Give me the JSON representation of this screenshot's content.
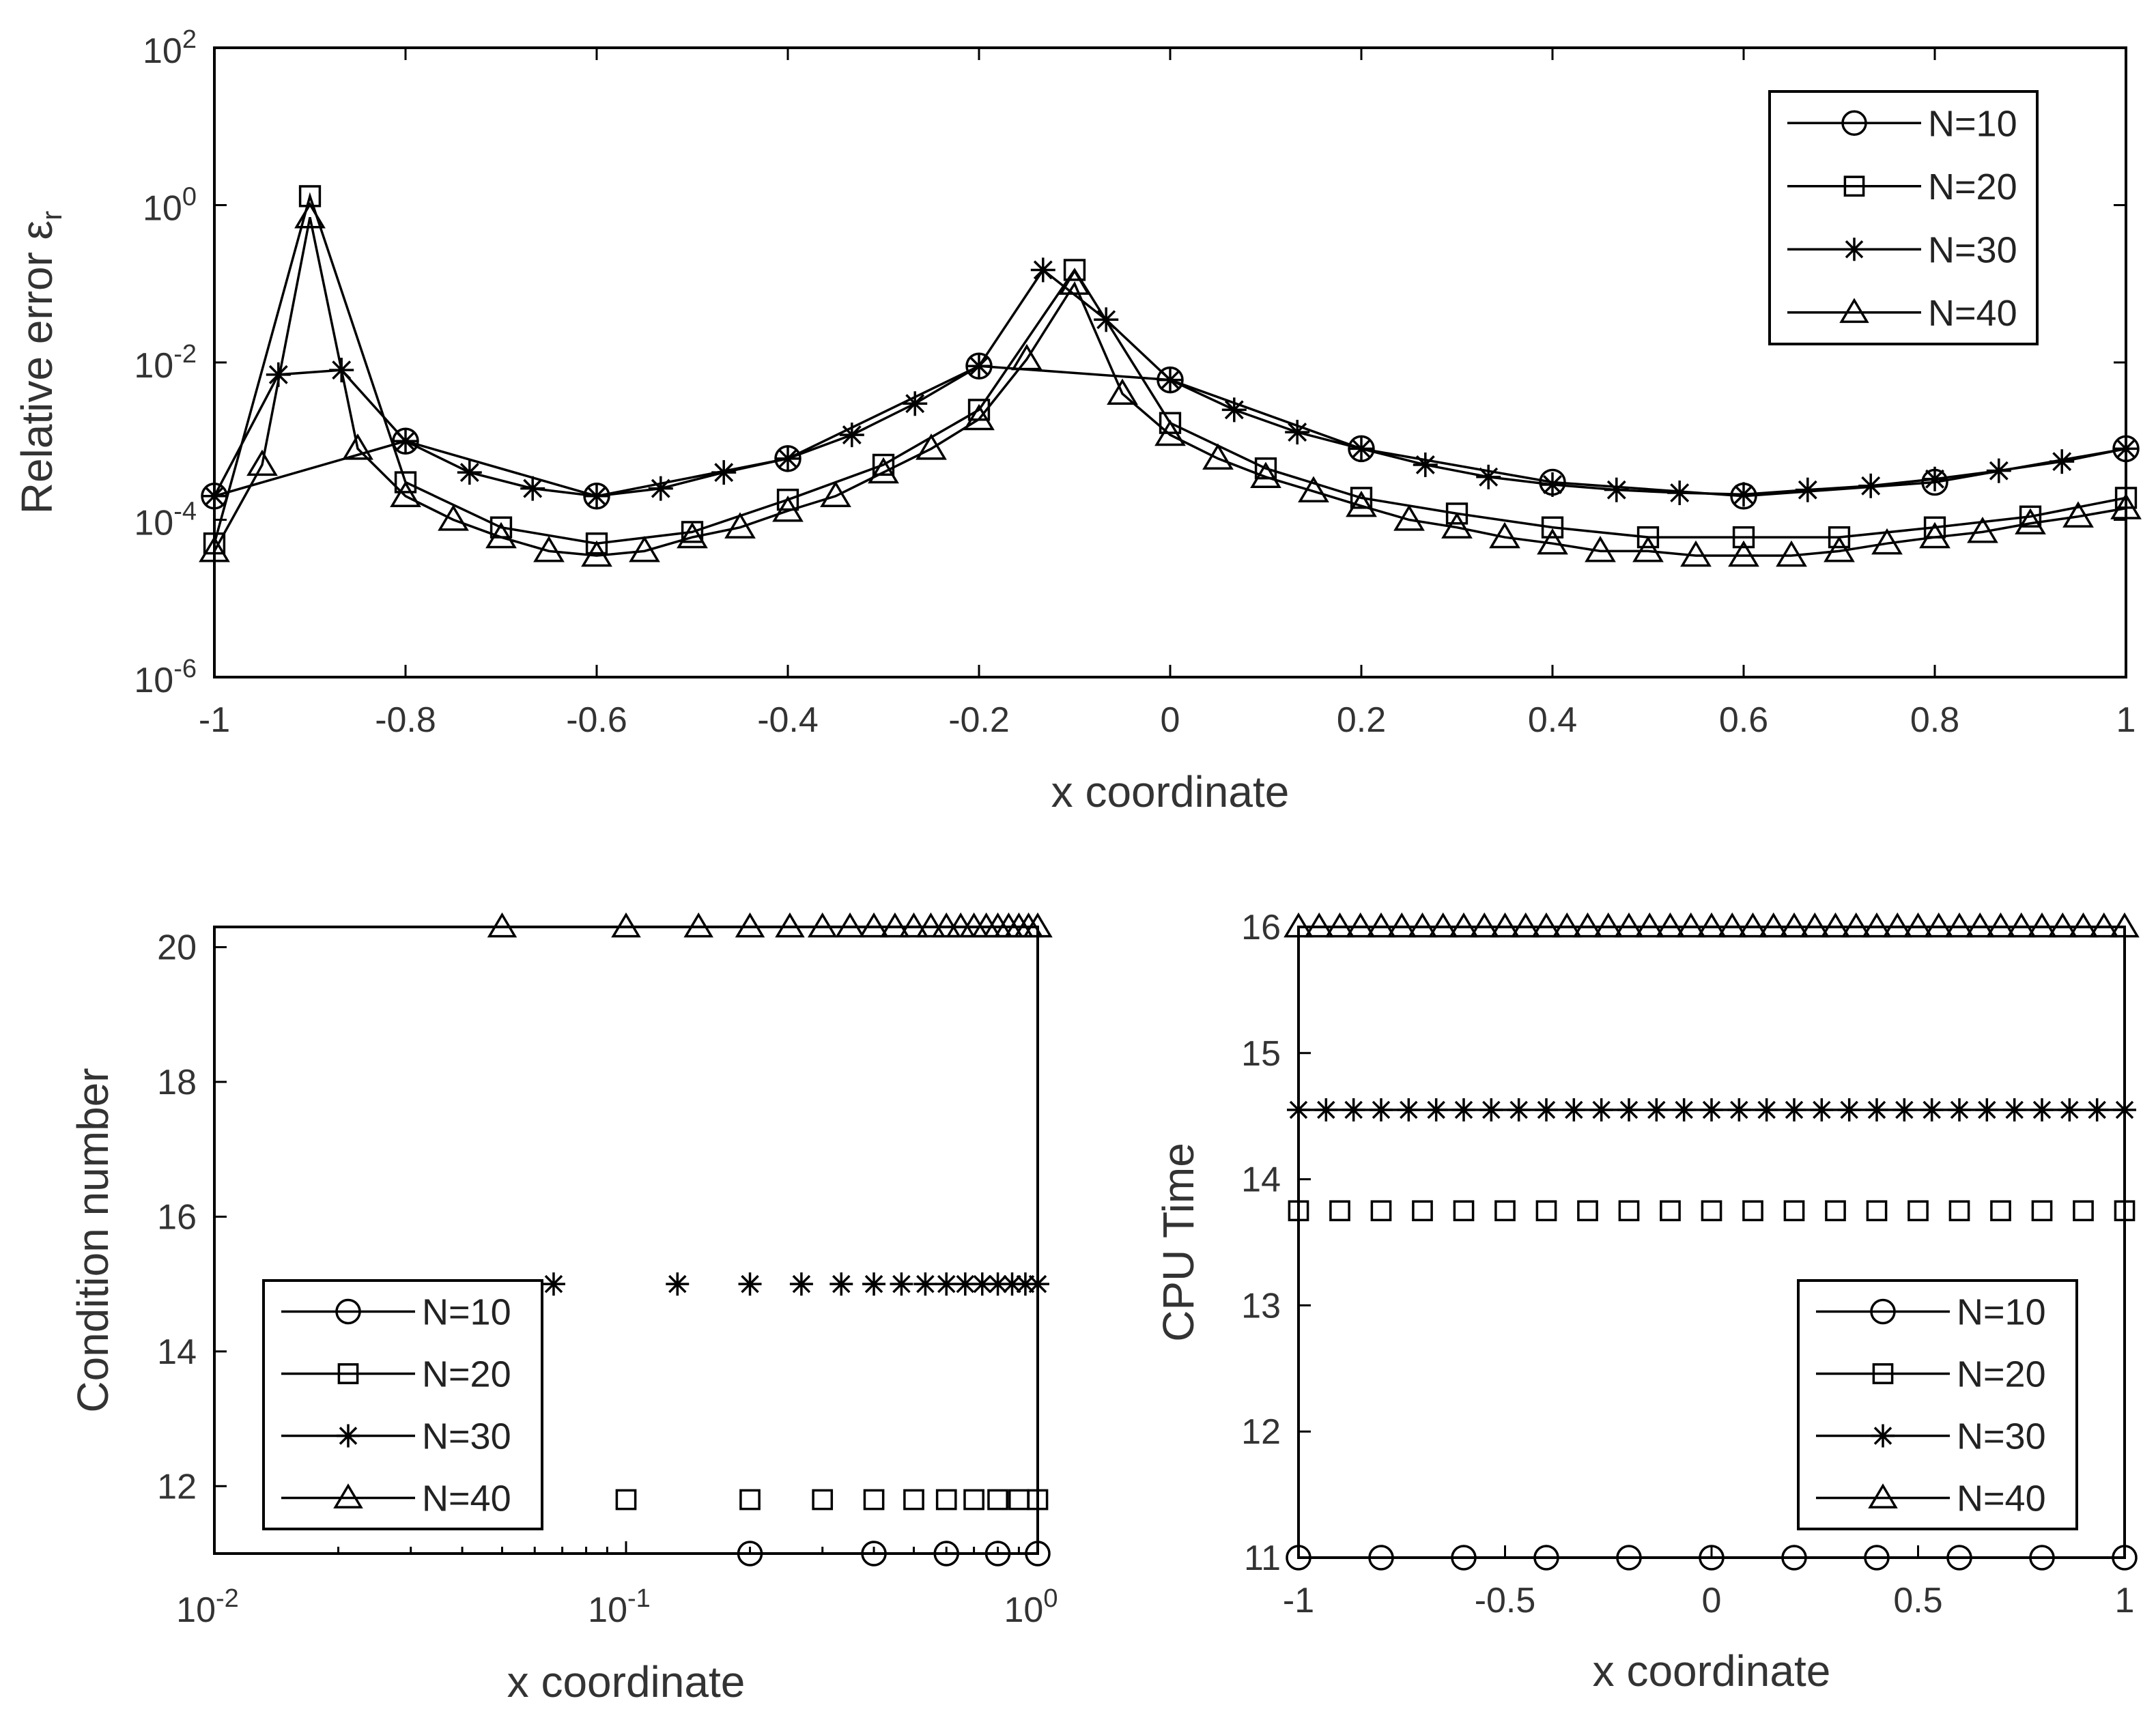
{
  "chart_data": [
    {
      "id": "top",
      "type": "line",
      "title": "",
      "xlabel": "x coordinate",
      "ylabel": "Relative error ε",
      "ylabel_sub": "r",
      "xscale": "linear",
      "yscale": "log",
      "xlim": [
        -1,
        1
      ],
      "ylim_exp": [
        -6,
        2
      ],
      "xticks": [
        "-1",
        "-0.8",
        "-0.6",
        "-0.4",
        "-0.2",
        "0",
        "0.2",
        "0.4",
        "0.6",
        "0.8",
        "1"
      ],
      "yticks": [
        {
          "base": "10",
          "exp": "-6"
        },
        {
          "base": "10",
          "exp": "-4"
        },
        {
          "base": "10",
          "exp": "-2"
        },
        {
          "base": "10",
          "exp": "0"
        },
        {
          "base": "10",
          "exp": "2"
        }
      ],
      "legend_position": "top-right",
      "series": [
        {
          "name": "N=10",
          "marker": "circle",
          "x": [
            -1,
            -0.8,
            -0.6,
            -0.4,
            -0.2,
            0,
            0.2,
            0.4,
            0.6,
            0.8,
            1
          ],
          "y": [
            0.0002,
            0.001,
            0.0002,
            0.0006,
            0.009,
            0.006,
            0.0008,
            0.0003,
            0.0002,
            0.0003,
            0.0008
          ]
        },
        {
          "name": "N=20",
          "marker": "square",
          "x": [
            -1,
            -0.9,
            -0.8,
            -0.7,
            -0.6,
            -0.5,
            -0.4,
            -0.3,
            -0.2,
            -0.1,
            0,
            0.1,
            0.2,
            0.3,
            0.4,
            0.5,
            0.6,
            0.7,
            0.8,
            0.9,
            1
          ],
          "y": [
            5e-05,
            1.3,
            0.0003,
            8e-05,
            5e-05,
            7e-05,
            0.00018,
            0.0005,
            0.0025,
            0.15,
            0.0017,
            0.00045,
            0.00019,
            0.00012,
            8e-05,
            6e-05,
            6e-05,
            6e-05,
            8e-05,
            0.00011,
            0.00019
          ]
        },
        {
          "name": "N=30",
          "marker": "star",
          "x": [
            -1,
            -0.933,
            -0.867,
            -0.8,
            -0.733,
            -0.667,
            -0.6,
            -0.533,
            -0.467,
            -0.4,
            -0.333,
            -0.267,
            -0.2,
            -0.133,
            -0.067,
            0,
            0.067,
            0.133,
            0.2,
            0.267,
            0.333,
            0.4,
            0.467,
            0.533,
            0.6,
            0.667,
            0.733,
            0.8,
            0.867,
            0.933,
            1
          ],
          "y": [
            0.0002,
            0.007,
            0.008,
            0.001,
            0.0004,
            0.00025,
            0.0002,
            0.00025,
            0.0004,
            0.0006,
            0.0012,
            0.003,
            0.009,
            0.15,
            0.035,
            0.006,
            0.0025,
            0.0013,
            0.0008,
            0.0005,
            0.00035,
            0.00028,
            0.00024,
            0.00022,
            0.00021,
            0.00024,
            0.00027,
            0.00033,
            0.00042,
            0.00055,
            0.0008
          ]
        },
        {
          "name": "N=40",
          "marker": "triangle",
          "x": [
            -1,
            -0.95,
            -0.9,
            -0.85,
            -0.8,
            -0.75,
            -0.7,
            -0.65,
            -0.6,
            -0.55,
            -0.5,
            -0.45,
            -0.4,
            -0.35,
            -0.3,
            -0.25,
            -0.2,
            -0.15,
            -0.1,
            -0.05,
            0,
            0.05,
            0.1,
            0.15,
            0.2,
            0.25,
            0.3,
            0.35,
            0.4,
            0.45,
            0.5,
            0.55,
            0.6,
            0.65,
            0.7,
            0.75,
            0.8,
            0.85,
            0.9,
            0.95,
            1
          ],
          "y": [
            4e-05,
            0.0005,
            0.7,
            0.0008,
            0.0002,
            0.0001,
            6e-05,
            4e-05,
            3.5e-05,
            4e-05,
            6e-05,
            8e-05,
            0.00013,
            0.0002,
            0.0004,
            0.0008,
            0.0019,
            0.011,
            0.1,
            0.004,
            0.0012,
            0.0006,
            0.00035,
            0.00023,
            0.00015,
            0.0001,
            8e-05,
            6e-05,
            5e-05,
            4e-05,
            4e-05,
            3.5e-05,
            3.5e-05,
            3.5e-05,
            4e-05,
            5e-05,
            6e-05,
            7e-05,
            9e-05,
            0.00011,
            0.00014
          ]
        }
      ]
    },
    {
      "id": "bottom-left",
      "type": "scatter",
      "title": "",
      "xlabel": "x coordinate",
      "ylabel": "Condition number",
      "xscale": "log",
      "yscale": "linear",
      "xlim_exp": [
        -2,
        0
      ],
      "ylim": [
        11,
        20.3
      ],
      "xticks": [
        {
          "base": "10",
          "exp": "-2"
        },
        {
          "base": "10",
          "exp": "-1"
        },
        {
          "base": "10",
          "exp": "0"
        }
      ],
      "yticks": [
        "12",
        "14",
        "16",
        "18",
        "20"
      ],
      "legend_position": "bottom-left",
      "series": [
        {
          "name": "N=10",
          "marker": "circle",
          "y": 11.0,
          "x": [
            0.2,
            0.4,
            0.6,
            0.8,
            1.0
          ]
        },
        {
          "name": "N=20",
          "marker": "square",
          "y": 11.8,
          "x": [
            0.1,
            0.2,
            0.3,
            0.4,
            0.5,
            0.6,
            0.7,
            0.8,
            0.9,
            1.0
          ]
        },
        {
          "name": "N=30",
          "marker": "star",
          "y": 15.0,
          "x": [
            0.0667,
            0.1333,
            0.2,
            0.2667,
            0.3333,
            0.4,
            0.4667,
            0.5333,
            0.6,
            0.6667,
            0.7333,
            0.8,
            0.8667,
            0.9333,
            1.0
          ]
        },
        {
          "name": "N=40",
          "marker": "triangle",
          "y": 20.3,
          "x": [
            0.05,
            0.1,
            0.15,
            0.2,
            0.25,
            0.3,
            0.35,
            0.4,
            0.45,
            0.5,
            0.55,
            0.6,
            0.65,
            0.7,
            0.75,
            0.8,
            0.85,
            0.9,
            0.95,
            1.0
          ]
        }
      ]
    },
    {
      "id": "bottom-right",
      "type": "line",
      "title": "",
      "xlabel": "x coordinate",
      "ylabel": "CPU Time",
      "xscale": "linear",
      "yscale": "linear",
      "xlim": [
        -1,
        1
      ],
      "ylim": [
        11,
        16
      ],
      "xticks": [
        "-1",
        "-0.5",
        "0",
        "0.5",
        "1"
      ],
      "xtick_values": [
        -1,
        -0.5,
        0,
        0.5,
        1
      ],
      "yticks": [
        "11",
        "12",
        "13",
        "14",
        "15",
        "16"
      ],
      "ytick_values": [
        11,
        12,
        13,
        14,
        15,
        16
      ],
      "legend_position": "bottom-right",
      "series": [
        {
          "name": "N=10",
          "marker": "circle",
          "y": 11.0,
          "n": 11,
          "line": true
        },
        {
          "name": "N=20",
          "marker": "square",
          "y": 13.75,
          "n": 21,
          "line": false
        },
        {
          "name": "N=30",
          "marker": "star",
          "y": 14.55,
          "n": 31,
          "line": true
        },
        {
          "name": "N=40",
          "marker": "triangle",
          "y": 16.0,
          "n": 41,
          "line": true
        }
      ]
    }
  ]
}
